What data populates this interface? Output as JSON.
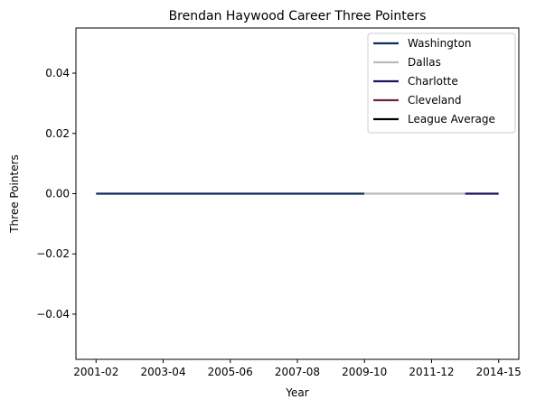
{
  "chart_data": {
    "type": "line",
    "title": "Brendan Haywood Career Three Pointers",
    "xlabel": "Year",
    "ylabel": "Three Pointers",
    "x_ticks": [
      "2001-02",
      "2003-04",
      "2005-06",
      "2007-08",
      "2009-10",
      "2011-12",
      "2014-15"
    ],
    "x_tick_index": [
      0,
      2,
      4,
      6,
      8,
      10,
      12
    ],
    "ylim": [
      -0.055,
      0.055
    ],
    "y_ticks": [
      -0.04,
      -0.02,
      0.0,
      0.02,
      0.04
    ],
    "y_tick_labels": [
      "−0.04",
      "−0.02",
      "0.00",
      "0.02",
      "0.04"
    ],
    "x_range_index": [
      -0.6,
      12.6
    ],
    "grid": false,
    "legend_position": "upper-right",
    "series": [
      {
        "name": "Washington",
        "color": "#0b2f5a",
        "x_index": [
          0,
          1,
          2,
          3,
          4,
          5,
          6,
          7,
          8
        ],
        "values": [
          0,
          0,
          0,
          0,
          0,
          0,
          0,
          0,
          0
        ]
      },
      {
        "name": "Dallas",
        "color": "#bbbcbf",
        "x_index": [
          8,
          9,
          10,
          11
        ],
        "values": [
          0,
          0,
          0,
          0
        ]
      },
      {
        "name": "Charlotte",
        "color": "#1d1160",
        "x_index": [
          11,
          12
        ],
        "values": [
          0,
          0
        ]
      },
      {
        "name": "Cleveland",
        "color": "#6f263d",
        "x_index": [],
        "values": []
      },
      {
        "name": "League Average",
        "color": "#000000",
        "x_index": [],
        "values": []
      }
    ]
  }
}
